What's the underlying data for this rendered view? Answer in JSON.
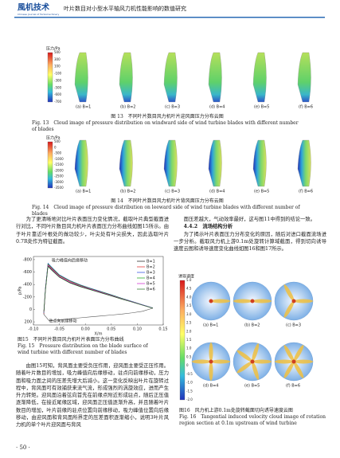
{
  "header": {
    "logo": "風机技术",
    "logo_sub": "Chinese Journal of Turbomachinery",
    "title": "叶片数目对小型水平轴风力机性能影响的数值研究"
  },
  "figure13": {
    "colorbar_title": "压力/Pa",
    "colorbar_ticks": [
      "500",
      "300",
      "100",
      "-100",
      "-300",
      "-500",
      "-600",
      "-700"
    ],
    "panels": [
      "(a) B=1",
      "(b) B=2",
      "(c) B=3",
      "(d) B=4",
      "(e) B=5",
      "(f) B=6"
    ],
    "caption_cn": "图 13　不同叶片数目风力机叶片迎风面压力分布云图",
    "caption_en": "Fig. 13　Cloud image of pressure distribution on windward side of wind turbine blades with different number of blades"
  },
  "figure14": {
    "colorbar_title": "压力/Pa",
    "colorbar_ticks": [
      "500",
      "0",
      "-500",
      "-1000",
      "-1500",
      "-2000",
      "-2500",
      "-3000",
      "-3500"
    ],
    "panels": [
      "(a) B=1",
      "(b) B=2",
      "(c) B=3",
      "(d) B=4",
      "(e) B=5",
      "(f) B=6"
    ],
    "caption_cn": "图 14　不同叶片数目风力机叶片背风面压力分布云图",
    "caption_en": "Fig. 14　Cloud image of pressure distribution on leeward side of wind turbine blades with different number of blades"
  },
  "text_left_1": "为了更清晰地对比叶片表面压力变化情况，截取叶片典型截面进行对比，不同叶片数目风力机叶片表面压力分布曲线如图15所示。由于叶片靠近叶根处的做功较少，叶尖处有叶尖损失，因此选取叶片0.7R处作为特征截面。",
  "figure15": {
    "chart": {
      "type": "line",
      "ylabel": "p/Pa",
      "xlabel": "X/m",
      "y_inverted": true,
      "xlim": [
        -0.1,
        0.15
      ],
      "ylim": [
        -850,
        250
      ],
      "xticks": [
        {
          "value": -0.1,
          "label": "-0.10"
        },
        -0.05,
        {
          "value": 0,
          "label": "0.00"
        },
        0.05,
        {
          "value": 0.1,
          "label": "0.10"
        },
        0.15
      ],
      "yticks": [
        -800,
        -600,
        -400,
        -200,
        0,
        200
      ],
      "x": [
        -0.08,
        -0.077,
        -0.072,
        -0.065,
        -0.05,
        -0.03,
        -0.01,
        0.01,
        0.03,
        0.05,
        0.07,
        0.09,
        0.11,
        0.13
      ],
      "series": [
        {
          "name": "B=1",
          "color": "#111111",
          "values": [
            80,
            -300,
            -700,
            -640,
            -520,
            -430,
            -370,
            -320,
            -270,
            -220,
            -170,
            -120,
            -70,
            -20
          ]
        },
        {
          "name": "B=2",
          "color": "#e02020",
          "values": [
            70,
            -320,
            -720,
            -660,
            -540,
            -450,
            -385,
            -330,
            -280,
            -228,
            -175,
            -125,
            -72,
            -22
          ]
        },
        {
          "name": "B=3",
          "color": "#2040e0",
          "values": [
            60,
            -340,
            -740,
            -680,
            -555,
            -465,
            -395,
            -340,
            -288,
            -235,
            -180,
            -128,
            -75,
            -24
          ]
        },
        {
          "name": "B=4",
          "color": "#10a010",
          "values": [
            50,
            -330,
            -730,
            -670,
            -548,
            -458,
            -390,
            -335,
            -284,
            -232,
            -178,
            -126,
            -73,
            -23
          ]
        },
        {
          "name": "B=5",
          "color": "#d020d0",
          "values": [
            40,
            -310,
            -710,
            -650,
            -530,
            -440,
            -378,
            -325,
            -275,
            -225,
            -172,
            -122,
            -71,
            -21
          ]
        },
        {
          "name": "B=6",
          "color": "#207020",
          "values": [
            30,
            -290,
            -690,
            -630,
            -515,
            -425,
            -365,
            -315,
            -265,
            -215,
            -165,
            -118,
            -68,
            -19
          ]
        }
      ],
      "pressure_side": {
        "color": "#555555",
        "x": [
          -0.08,
          -0.07,
          -0.05,
          -0.03,
          -0.01,
          0.01,
          0.03,
          0.05,
          0.07,
          0.09,
          0.11,
          0.13
        ],
        "values": [
          80,
          180,
          170,
          150,
          135,
          120,
          105,
          90,
          75,
          55,
          30,
          -20
        ]
      },
      "annotations": [
        "吸力峰值向后缘移动",
        "驻点向前缘移动"
      ]
    },
    "caption_cn": "图15　不同叶片数目风力机叶片表面压力分布曲线",
    "caption_en": "Fig. 15　Pressure distribution on the blade surface of wind turbine with different number of blades"
  },
  "text_left_2": "由图15可知，背风面主要受负压作用，迎风面主要受正压作用。随着叶片数目的增加，吸力峰值向后缘移动，驻点向前缘移动，压力面和吸力面之间的压差先增大后减小。这一变化反映出叶片在旋转过程中，背风面可有效捕获来流气流，形成强烈的涡旋效应，进而产生升力转矩。迎风面沿着弦向首先在前缘点附近形成驻点，随后正压值逐渐降低，在接近尾缘区域，迎风面正压值逐渐升高，并且随着叶片数目的增加，叶片前缘的驻点位置向前缘移动，吸力峰值位置向后缘移动，由迎风面和背风面所界定的压差面积逐渐缩小，说明3叶片风力机的单个叶片迎风面与背风",
  "text_right_1": "面压差越大，气动效率最好，这与图11中得到的结论一致。",
  "section_heading": "4.4.2　流场结构分析",
  "text_right_2": "为了揭示叶片表面压力分布变化的原因，随后对进口截面流场进一步分析。截取风力机上游0.1m处旋转计算域截面，得到切向诱导速度云图和诱导速度变化曲线如图16和图17所示。",
  "figure16": {
    "colorbar_title": "诱导速度",
    "colorbar_ticks": [
      "5.0",
      "4.5",
      "4.0",
      "3.5",
      "3.0",
      "2.5",
      "2.0",
      "1.5",
      "1.0",
      "0.5",
      "0",
      "-0.5",
      "-1.0",
      "-1.5",
      "-2.0"
    ],
    "panels": [
      "(a) B=1",
      "(b) B=2",
      "(c) B=3",
      "(d) B=4",
      "(e) B=5",
      "(f) B=6"
    ],
    "caption_cn": "图16　风力机上游0.1m处旋转截面切向诱导速度云图",
    "caption_en": "Fig. 16　Tangential induced velocity cloud image of rotation region section at 0.1m upstream of wind turbine"
  },
  "page_number": "· 50 ·"
}
